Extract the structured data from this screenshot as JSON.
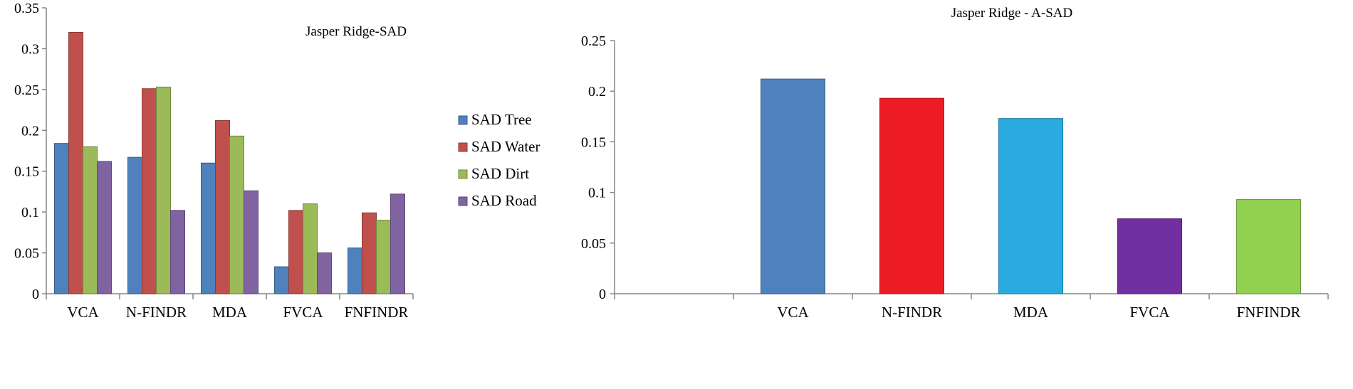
{
  "chart_data": [
    {
      "type": "bar",
      "title": "Jasper Ridge-SAD",
      "xlabel": "",
      "ylabel": "",
      "ylim": [
        0,
        0.35
      ],
      "yticks": [
        "0",
        "0.05",
        "0.1",
        "0.15",
        "0.2",
        "0.25",
        "0.3",
        "0.35"
      ],
      "categories": [
        "VCA",
        "N-FINDR",
        "MDA",
        "FVCA",
        "FNFINDR"
      ],
      "series": [
        {
          "name": "SAD Tree",
          "color": "#4f81bd",
          "values": [
            0.184,
            0.167,
            0.16,
            0.033,
            0.056
          ]
        },
        {
          "name": "SAD Water",
          "color": "#c0504d",
          "values": [
            0.32,
            0.251,
            0.212,
            0.102,
            0.099
          ]
        },
        {
          "name": "SAD Dirt",
          "color": "#9bbb59",
          "values": [
            0.18,
            0.253,
            0.193,
            0.11,
            0.09
          ]
        },
        {
          "name": "SAD Road",
          "color": "#8064a2",
          "values": [
            0.162,
            0.102,
            0.126,
            0.05,
            0.122
          ]
        }
      ],
      "legend": "right",
      "grid": false
    },
    {
      "type": "bar",
      "title": "Jasper Ridge - A-SAD",
      "xlabel": "",
      "ylabel": "",
      "ylim": [
        0,
        0.25
      ],
      "yticks": [
        "0",
        "0.05",
        "0.1",
        "0.15",
        "0.2",
        "0.25"
      ],
      "categories": [
        "",
        "VCA",
        "N-FINDR",
        "MDA",
        "FVCA",
        "FNFINDR"
      ],
      "values": [
        null,
        0.212,
        0.193,
        0.173,
        0.074,
        0.093
      ],
      "colors": [
        "#ffffff",
        "#4f81bd",
        "#ed1c24",
        "#29abe2",
        "#7030a0",
        "#92d050"
      ],
      "legend": "none",
      "grid": false
    }
  ]
}
